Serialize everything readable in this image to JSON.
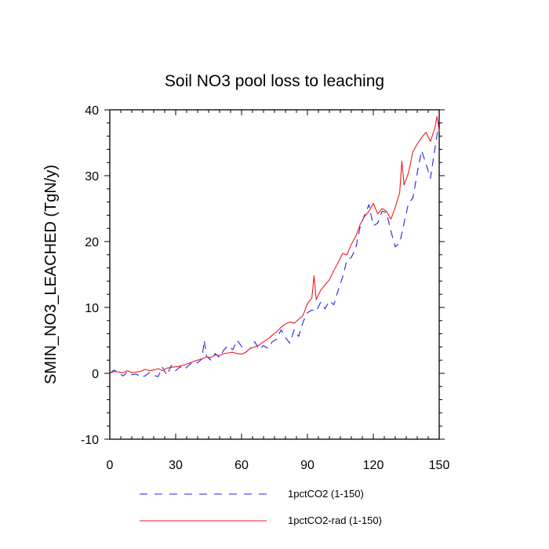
{
  "chart_data": {
    "type": "line",
    "title": "Soil NO3 pool loss to leaching",
    "ylabel": "SMIN_NO3_LEACHED  (TgN/y)",
    "xlabel": "",
    "xlim": [
      0,
      150
    ],
    "ylim": [
      -10,
      40
    ],
    "x_ticks": [
      0,
      30,
      60,
      90,
      120,
      150
    ],
    "x_tick_labels": [
      "0",
      "30",
      "60",
      "90",
      "120",
      "150"
    ],
    "y_ticks": [
      -10,
      0,
      10,
      20,
      30,
      40
    ],
    "y_tick_labels": [
      "-10",
      "0",
      "10",
      "20",
      "30",
      "40"
    ],
    "grid": false,
    "legend_position": "bottom",
    "colors": {
      "series1": "#2323e6",
      "series2": "#ee1c1c"
    },
    "series": [
      {
        "name": "1pctCO2 (1-150)",
        "style": "dashed",
        "x": [
          0,
          2,
          4,
          6,
          8,
          10,
          12,
          14,
          16,
          18,
          20,
          22,
          24,
          26,
          28,
          30,
          32,
          34,
          36,
          38,
          40,
          42,
          43,
          44,
          46,
          48,
          50,
          52,
          54,
          56,
          58,
          60,
          62,
          64,
          66,
          68,
          70,
          72,
          74,
          76,
          78,
          80,
          82,
          84,
          86,
          88,
          90,
          92,
          94,
          96,
          98,
          100,
          102,
          104,
          106,
          108,
          110,
          112,
          114,
          116,
          118,
          120,
          122,
          124,
          126,
          128,
          130,
          132,
          134,
          136,
          138,
          140,
          142,
          144,
          146,
          148,
          150
        ],
        "y": [
          0.0,
          0.5,
          0.1,
          -0.4,
          0.2,
          -0.2,
          -0.1,
          -0.6,
          -0.4,
          0.1,
          -0.3,
          -0.5,
          0.9,
          -0.3,
          1.2,
          0.4,
          1.0,
          0.6,
          1.2,
          1.8,
          1.6,
          2.2,
          5.0,
          2.6,
          2.0,
          3.0,
          2.4,
          3.6,
          4.2,
          3.6,
          5.0,
          4.1,
          3.2,
          3.8,
          4.8,
          3.6,
          4.2,
          3.8,
          4.8,
          5.2,
          6.6,
          5.4,
          4.6,
          6.6,
          5.6,
          7.8,
          9.2,
          9.6,
          9.4,
          10.8,
          9.8,
          11.0,
          10.4,
          12.6,
          14.6,
          17.2,
          17.6,
          19.0,
          22.2,
          24.0,
          25.6,
          22.4,
          22.8,
          24.6,
          24.4,
          21.6,
          19.2,
          19.8,
          22.8,
          25.8,
          26.6,
          30.4,
          33.8,
          31.8,
          29.6,
          34.0,
          38.4
        ]
      },
      {
        "name": "1pctCO2-rad (1-150)",
        "style": "solid",
        "x": [
          0,
          2,
          4,
          6,
          8,
          10,
          12,
          14,
          16,
          18,
          20,
          22,
          24,
          26,
          28,
          30,
          32,
          34,
          36,
          38,
          40,
          42,
          44,
          46,
          48,
          50,
          52,
          54,
          56,
          58,
          60,
          62,
          64,
          66,
          68,
          70,
          72,
          74,
          76,
          78,
          80,
          82,
          84,
          86,
          88,
          90,
          92,
          93,
          94,
          96,
          98,
          100,
          102,
          104,
          106,
          108,
          110,
          112,
          114,
          116,
          118,
          120,
          122,
          124,
          126,
          128,
          130,
          132,
          133,
          134,
          136,
          138,
          140,
          142,
          144,
          146,
          148,
          149,
          150
        ],
        "y": [
          0.0,
          0.3,
          0.2,
          0.1,
          0.4,
          0.1,
          0.2,
          0.3,
          0.6,
          0.4,
          0.5,
          0.7,
          0.4,
          0.8,
          0.9,
          1.0,
          1.1,
          1.3,
          1.5,
          1.8,
          2.0,
          2.2,
          2.5,
          2.4,
          2.8,
          2.7,
          3.0,
          3.1,
          3.2,
          3.0,
          2.9,
          3.2,
          3.8,
          4.0,
          4.3,
          4.8,
          5.2,
          5.8,
          6.3,
          7.0,
          7.5,
          7.8,
          7.6,
          8.2,
          8.8,
          10.6,
          11.4,
          14.8,
          11.2,
          12.6,
          13.4,
          14.2,
          15.6,
          16.8,
          18.2,
          18.0,
          19.6,
          20.8,
          22.6,
          23.8,
          24.6,
          25.8,
          24.2,
          25.0,
          24.6,
          23.4,
          25.2,
          27.4,
          32.2,
          28.6,
          30.4,
          33.6,
          34.8,
          35.8,
          36.6,
          35.2,
          37.2,
          39.0,
          36.8
        ]
      }
    ]
  }
}
